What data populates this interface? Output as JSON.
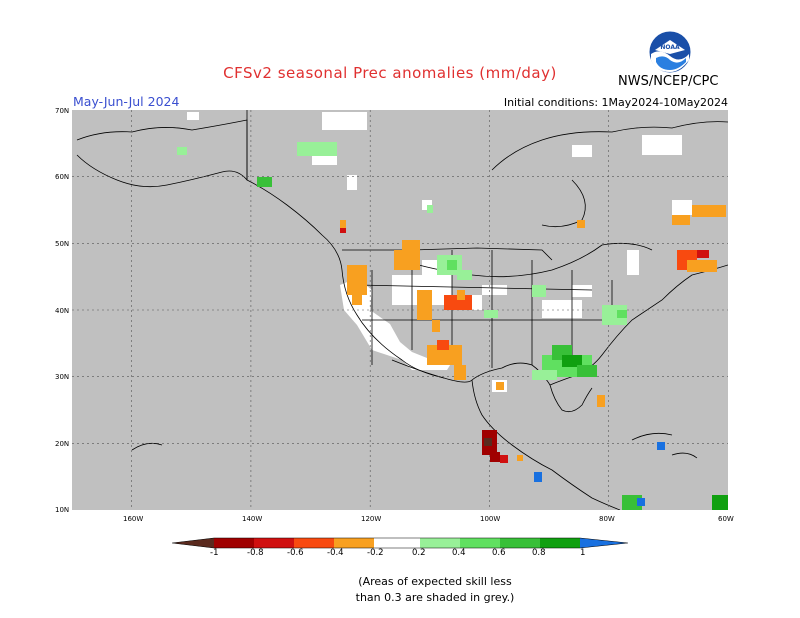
{
  "title": "CFSv2 seasonal Prec anomalies (mm/day)",
  "agency": "NWS/NCEP/CPC",
  "period": "May-Jun-Jul 2024",
  "initial_conditions": "Initial conditions: 1May2024-10May2024",
  "logo_text": "NOAA",
  "lat_labels": [
    "70N",
    "60N",
    "50N",
    "40N",
    "30N",
    "20N",
    "10N"
  ],
  "lon_labels": [
    "160W",
    "140W",
    "120W",
    "100W",
    "80W",
    "60W"
  ],
  "legend": {
    "labels": [
      "-1",
      "-0.8",
      "-0.6",
      "-0.4",
      "-0.2",
      "0.2",
      "0.4",
      "0.6",
      "0.8",
      "1"
    ],
    "colors": [
      "#5a2a1e",
      "#a00000",
      "#d01010",
      "#f84a10",
      "#f8a020",
      "#ffffff",
      "#98f098",
      "#60e060",
      "#38c038",
      "#10a010",
      "#1870e0"
    ]
  },
  "note_line1": "(Areas of expected skill less",
  "note_line2": "than 0.3 are shaded in grey.)",
  "colors": {
    "title": "#e03030",
    "period": "#3a4fd0",
    "skill_mask_grey": "#c0c0c0"
  }
}
